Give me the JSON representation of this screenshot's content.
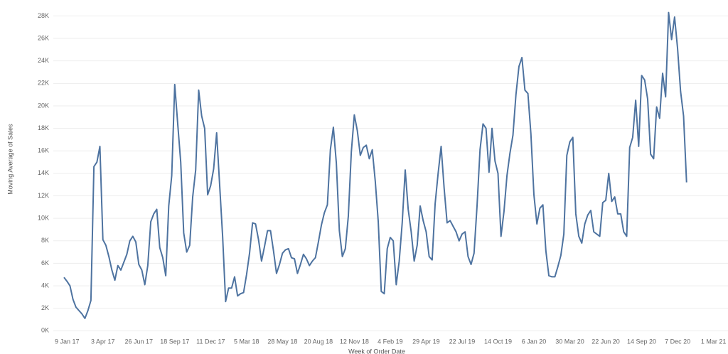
{
  "chart_data": {
    "type": "line",
    "y_title": "Moving Average of Sales",
    "x_title": "Week of Order Date",
    "grid": true,
    "categories": [
      null,
      "9 Jan 17",
      null,
      null,
      null,
      null,
      null,
      null,
      null,
      null,
      null,
      null,
      null,
      "3 Apr 17",
      null,
      null,
      null,
      null,
      null,
      null,
      null,
      null,
      null,
      null,
      null,
      "26 Jun 17",
      null,
      null,
      null,
      null,
      null,
      null,
      null,
      null,
      null,
      null,
      null,
      "18 Sep 17",
      null,
      null,
      null,
      null,
      null,
      null,
      null,
      null,
      null,
      null,
      null,
      "11 Dec 17",
      null,
      null,
      null,
      null,
      null,
      null,
      null,
      null,
      null,
      null,
      null,
      "5 Mar 18",
      null,
      null,
      null,
      null,
      null,
      null,
      null,
      null,
      null,
      null,
      null,
      "28 May 18",
      null,
      null,
      null,
      null,
      null,
      null,
      null,
      null,
      null,
      null,
      null,
      "20 Aug 18",
      null,
      null,
      null,
      null,
      null,
      null,
      null,
      null,
      null,
      null,
      null,
      "12 Nov 18",
      null,
      null,
      null,
      null,
      null,
      null,
      null,
      null,
      null,
      null,
      null,
      "4 Feb 19",
      null,
      null,
      null,
      null,
      null,
      null,
      null,
      null,
      null,
      null,
      null,
      "29 Apr 19",
      null,
      null,
      null,
      null,
      null,
      null,
      null,
      null,
      null,
      null,
      null,
      "22 Jul 19",
      null,
      null,
      null,
      null,
      null,
      null,
      null,
      null,
      null,
      null,
      null,
      "14 Oct 19",
      null,
      null,
      null,
      null,
      null,
      null,
      null,
      null,
      null,
      null,
      null,
      "6 Jan 20",
      null,
      null,
      null,
      null,
      null,
      null,
      null,
      null,
      null,
      null,
      null,
      "30 Mar 20",
      null,
      null,
      null,
      null,
      null,
      null,
      null,
      null,
      null,
      null,
      null,
      "22 Jun 20",
      null,
      null,
      null,
      null,
      null,
      null,
      null,
      null,
      null,
      null,
      null,
      "14 Sep 20",
      null,
      null,
      null,
      null,
      null,
      null,
      null,
      null,
      null,
      null,
      null,
      "7 Dec 20",
      null,
      null,
      null,
      null,
      null,
      null,
      null,
      null,
      null,
      null,
      null,
      "1 Mar 21"
    ],
    "series": [
      {
        "color": "#4e73a0",
        "values": [
          4750,
          4400,
          4000,
          2800,
          2100,
          1800,
          1500,
          1100,
          1800,
          2700,
          14600,
          15000,
          16400,
          8100,
          7600,
          6600,
          5400,
          4500,
          5800,
          5400,
          6100,
          6800,
          8000,
          8400,
          7900,
          5900,
          5400,
          4100,
          5800,
          9700,
          10400,
          10800,
          7400,
          6500,
          4900,
          11100,
          13800,
          21900,
          18400,
          15000,
          8700,
          7000,
          7600,
          11900,
          14300,
          21400,
          19100,
          18000,
          12100,
          12900,
          14400,
          17600,
          13000,
          8400,
          2600,
          3800,
          3800,
          4800,
          3100,
          3300,
          3400,
          5000,
          6900,
          9600,
          9500,
          8100,
          6200,
          7500,
          8900,
          8900,
          7100,
          5100,
          5900,
          6900,
          7200,
          7300,
          6500,
          6400,
          5100,
          5900,
          6800,
          6400,
          5800,
          6200,
          6500,
          7900,
          9400,
          10500,
          11200,
          16100,
          18100,
          14900,
          8900,
          6600,
          7300,
          10200,
          15900,
          19200,
          17800,
          15600,
          16300,
          16500,
          15300,
          16100,
          13300,
          9700,
          3500,
          3300,
          7300,
          8300,
          8000,
          4100,
          6200,
          9600,
          14300,
          10800,
          8800,
          6200,
          7600,
          11100,
          9800,
          8800,
          6600,
          6300,
          11300,
          14000,
          16400,
          12700,
          9600,
          9800,
          9300,
          8800,
          8000,
          8600,
          8800,
          6600,
          5900,
          6900,
          11100,
          16100,
          18400,
          18000,
          14100,
          18000,
          15100,
          14000,
          8400,
          10600,
          13800,
          15800,
          17400,
          21000,
          23500,
          24300,
          21400,
          21100,
          17500,
          12100,
          9500,
          10900,
          11200,
          7100,
          4900,
          4800,
          4800,
          5700,
          6700,
          8600,
          15600,
          16800,
          17200,
          10400,
          8400,
          7800,
          9500,
          10300,
          10700,
          8800,
          8600,
          8400,
          11400,
          11600,
          14000,
          11500,
          11900,
          10400,
          10400,
          8800,
          8400,
          16300,
          17200,
          20500,
          16400,
          22700,
          22300,
          20600,
          15700,
          15300,
          19900,
          18900,
          22900,
          20800,
          28300,
          25900,
          27900,
          25100,
          21300,
          19100,
          13200,
          null,
          null,
          null,
          null,
          null,
          null,
          null,
          null,
          null
        ]
      }
    ],
    "ylim": [
      -800,
      29100
    ],
    "yticks": [
      {
        "value": 0,
        "label": "0K"
      },
      {
        "value": 2000,
        "label": "2K"
      },
      {
        "value": 4000,
        "label": "4K"
      },
      {
        "value": 6000,
        "label": "6K"
      },
      {
        "value": 8000,
        "label": "8K"
      },
      {
        "value": 10000,
        "label": "10K"
      },
      {
        "value": 12000,
        "label": "12K"
      },
      {
        "value": 14000,
        "label": "14K"
      },
      {
        "value": 16000,
        "label": "16K"
      },
      {
        "value": 18000,
        "label": "18K"
      },
      {
        "value": 20000,
        "label": "20K"
      },
      {
        "value": 22000,
        "label": "22K"
      },
      {
        "value": 24000,
        "label": "24K"
      },
      {
        "value": 26000,
        "label": "26K"
      },
      {
        "value": 28000,
        "label": "28K"
      }
    ]
  }
}
